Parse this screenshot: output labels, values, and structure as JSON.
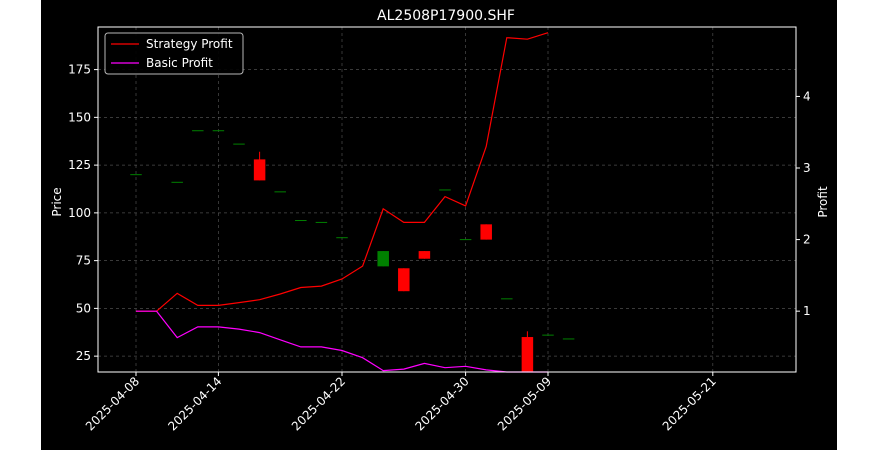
{
  "chart_data": {
    "type": "candlestick+line",
    "title": "AL2508P17900.SHF",
    "xlabel": "",
    "ylabel_left": "Price",
    "ylabel_right": "Profit",
    "ylim_left": [
      16.7,
      197.3
    ],
    "ylim_right": [
      0.15,
      4.97
    ],
    "yticks_left": [
      25,
      50,
      75,
      100,
      125,
      150,
      175
    ],
    "yticks_right": [
      1,
      2,
      3,
      4
    ],
    "xticks": [
      "2025-04-08",
      "2025-04-14",
      "2025-04-22",
      "2025-04-30",
      "2025-05-09",
      "2025-05-21"
    ],
    "grid": true,
    "legend_position": "top-left",
    "dates": [
      "2025-04-08",
      "2025-04-09",
      "2025-04-10",
      "2025-04-11",
      "2025-04-14",
      "2025-04-15",
      "2025-04-16",
      "2025-04-17",
      "2025-04-18",
      "2025-04-21",
      "2025-04-22",
      "2025-04-23",
      "2025-04-24",
      "2025-04-25",
      "2025-04-28",
      "2025-04-29",
      "2025-04-30",
      "2025-05-06",
      "2025-05-07",
      "2025-05-08",
      "2025-05-09",
      "2025-05-12",
      "2025-05-13",
      "2025-05-14",
      "2025-05-15",
      "2025-05-16",
      "2025-05-19",
      "2025-05-20",
      "2025-05-21"
    ],
    "candles": [
      {
        "date": "2025-04-08",
        "open": 120,
        "high": 120,
        "low": 120,
        "close": 120
      },
      {
        "date": "2025-04-10",
        "open": 116,
        "high": 116,
        "low": 116,
        "close": 116
      },
      {
        "date": "2025-04-11",
        "open": 143,
        "high": 143,
        "low": 143,
        "close": 143
      },
      {
        "date": "2025-04-14",
        "open": 143,
        "high": 143,
        "low": 143,
        "close": 143
      },
      {
        "date": "2025-04-15",
        "open": 136,
        "high": 136,
        "low": 136,
        "close": 136
      },
      {
        "date": "2025-04-16",
        "open": 128,
        "high": 132,
        "low": 117,
        "close": 117
      },
      {
        "date": "2025-04-17",
        "open": 111,
        "high": 111,
        "low": 111,
        "close": 111
      },
      {
        "date": "2025-04-18",
        "open": 96,
        "high": 96,
        "low": 96,
        "close": 96
      },
      {
        "date": "2025-04-21",
        "open": 95,
        "high": 95,
        "low": 95,
        "close": 95
      },
      {
        "date": "2025-04-22",
        "open": 87,
        "high": 87,
        "low": 87,
        "close": 87
      },
      {
        "date": "2025-04-24",
        "open": 72,
        "high": 80,
        "low": 72,
        "close": 80
      },
      {
        "date": "2025-04-25",
        "open": 71,
        "high": 71,
        "low": 59,
        "close": 59
      },
      {
        "date": "2025-04-28",
        "open": 80,
        "high": 80,
        "low": 76,
        "close": 76
      },
      {
        "date": "2025-04-29",
        "open": 112,
        "high": 112,
        "low": 112,
        "close": 112
      },
      {
        "date": "2025-04-30",
        "open": 86,
        "high": 86,
        "low": 86,
        "close": 86
      },
      {
        "date": "2025-05-06",
        "open": 94,
        "high": 94,
        "low": 86,
        "close": 86
      },
      {
        "date": "2025-05-07",
        "open": 55,
        "high": 55,
        "low": 55,
        "close": 55
      },
      {
        "date": "2025-05-08",
        "open": 35,
        "high": 38,
        "low": 17,
        "close": 17
      },
      {
        "date": "2025-05-09",
        "open": 36,
        "high": 36,
        "low": 36,
        "close": 36
      },
      {
        "date": "2025-05-12",
        "open": 34,
        "high": 34,
        "low": 34,
        "close": 34
      }
    ],
    "series": [
      {
        "name": "Strategy Profit",
        "color": "#ff0000",
        "axis": "right",
        "points": [
          [
            "2025-04-08",
            1.0
          ],
          [
            "2025-04-09",
            1.0
          ],
          [
            "2025-04-10",
            1.25
          ],
          [
            "2025-04-11",
            1.08
          ],
          [
            "2025-04-14",
            1.08
          ],
          [
            "2025-04-15",
            1.12
          ],
          [
            "2025-04-16",
            1.16
          ],
          [
            "2025-04-17",
            1.24
          ],
          [
            "2025-04-18",
            1.33
          ],
          [
            "2025-04-21",
            1.35
          ],
          [
            "2025-04-22",
            1.45
          ],
          [
            "2025-04-23",
            1.63
          ],
          [
            "2025-04-24",
            2.43
          ],
          [
            "2025-04-25",
            2.24
          ],
          [
            "2025-04-28",
            2.24
          ],
          [
            "2025-04-29",
            2.6
          ],
          [
            "2025-04-30",
            2.47
          ],
          [
            "2025-05-06",
            3.3
          ],
          [
            "2025-05-07",
            4.82
          ],
          [
            "2025-05-08",
            4.8
          ],
          [
            "2025-05-09",
            4.89
          ]
        ]
      },
      {
        "name": "Basic Profit",
        "color": "#ff00ff",
        "axis": "right",
        "points": [
          [
            "2025-04-08",
            1.0
          ],
          [
            "2025-04-09",
            1.0
          ],
          [
            "2025-04-10",
            0.63
          ],
          [
            "2025-04-11",
            0.78
          ],
          [
            "2025-04-14",
            0.78
          ],
          [
            "2025-04-15",
            0.75
          ],
          [
            "2025-04-16",
            0.7
          ],
          [
            "2025-04-17",
            0.6
          ],
          [
            "2025-04-18",
            0.5
          ],
          [
            "2025-04-21",
            0.5
          ],
          [
            "2025-04-22",
            0.45
          ],
          [
            "2025-04-23",
            0.35
          ],
          [
            "2025-04-24",
            0.17
          ],
          [
            "2025-04-25",
            0.19
          ],
          [
            "2025-04-28",
            0.27
          ],
          [
            "2025-04-29",
            0.21
          ],
          [
            "2025-04-30",
            0.23
          ],
          [
            "2025-05-06",
            0.18
          ],
          [
            "2025-05-07",
            0.15
          ],
          [
            "2025-05-08",
            0.15
          ],
          [
            "2025-05-09",
            0.15
          ]
        ]
      }
    ],
    "candle_colors": {
      "up": "#008000",
      "down": "#ff0000"
    },
    "text_color": "#ffffff",
    "background": "#000000"
  }
}
